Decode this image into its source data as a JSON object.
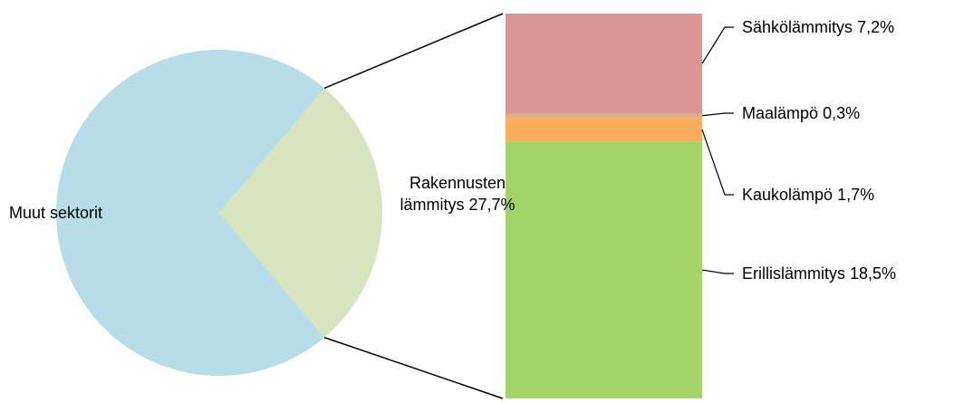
{
  "chart_data": {
    "type": "pie",
    "categories": [
      "Muut sektorit",
      "Rakennusten lämmitys"
    ],
    "values": [
      72.3,
      27.7
    ],
    "value_labels": [
      null,
      "27,7%"
    ],
    "colors": [
      "#b7dde8",
      "#d7e4bd"
    ],
    "stack": {
      "type": "bar",
      "series": [
        {
          "name": "Sähkölämmitys",
          "color": "#d99694",
          "values": [
            7.2
          ],
          "value_labels": [
            "7,2%"
          ]
        },
        {
          "name": "Maalämpö",
          "color": "#dcae8a",
          "values": [
            0.3
          ],
          "value_labels": [
            "0,3%"
          ]
        },
        {
          "name": "Kaukolämpö",
          "color": "#fcac5d",
          "values": [
            1.7
          ],
          "value_labels": [
            "1,7%"
          ]
        },
        {
          "name": "Erillislämmitys",
          "color": "#a3d46a",
          "values": [
            18.5
          ],
          "value_labels": [
            "18,5%"
          ]
        }
      ]
    }
  }
}
